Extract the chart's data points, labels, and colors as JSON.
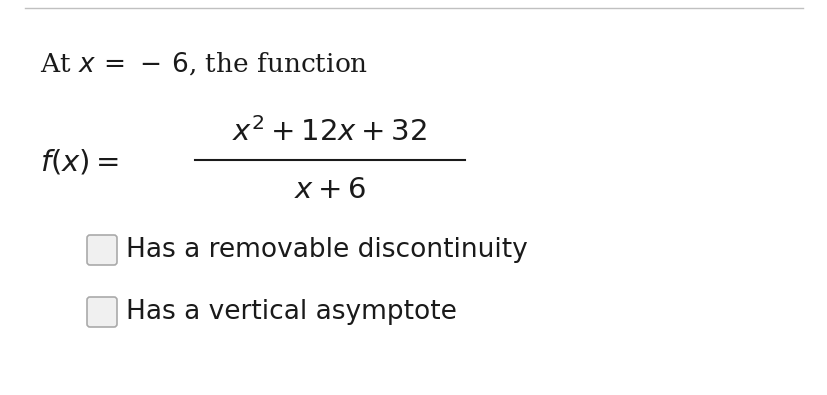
{
  "bg_color": "#ffffff",
  "top_line_color": "#c0c0c0",
  "title_line1": "At $x\\,=\\,-\\,6$, the function",
  "formula_numerator": "$x^2 + 12x + 32$",
  "formula_denominator": "$x + 6$",
  "formula_lhs": "$f(x) =$",
  "option1": "Has a removable discontinuity",
  "option2": "Has a vertical asymptote",
  "text_color": "#1a1a1a",
  "checkbox_face": "#f0f0f0",
  "checkbox_edge": "#aaaaaa",
  "font_size_title": 19,
  "font_size_formula": 21,
  "font_size_options": 19,
  "fig_width": 8.28,
  "fig_height": 3.95,
  "dpi": 100
}
